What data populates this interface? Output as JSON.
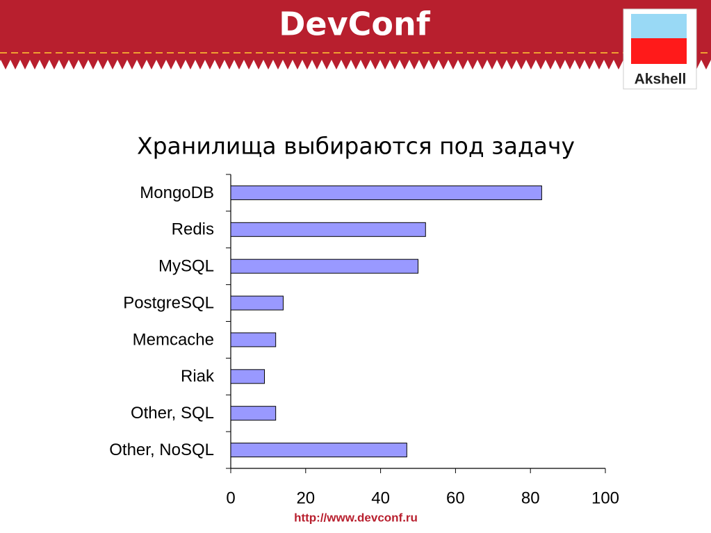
{
  "header": {
    "logo": "DevConf",
    "badge": "Akshell"
  },
  "footer": {
    "url": "http://www.devconf.ru"
  },
  "chart_data": {
    "type": "bar",
    "orientation": "horizontal",
    "title": "Хранилища выбираются под задачу",
    "categories": [
      "MongoDB",
      "Redis",
      "MySQL",
      "PostgreSQL",
      "Memcache",
      "Riak",
      "Other, SQL",
      "Other, NoSQL"
    ],
    "values": [
      83,
      52,
      50,
      14,
      12,
      9,
      12,
      47
    ],
    "color": "#9999ff",
    "xlim": [
      0,
      100
    ],
    "xticks": [
      0,
      20,
      40,
      60,
      80,
      100
    ],
    "grid": false
  }
}
